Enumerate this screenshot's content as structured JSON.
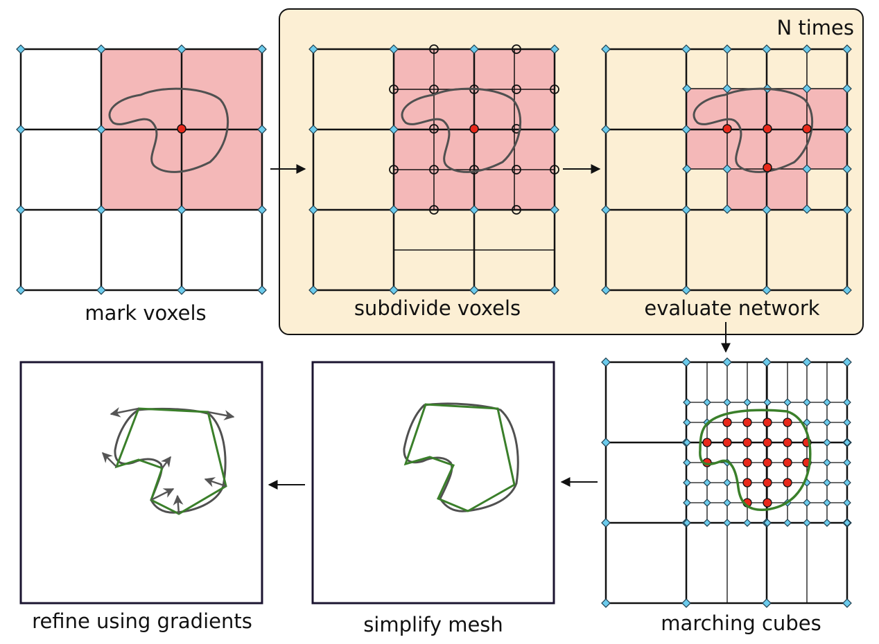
{
  "repeat_box": {
    "label": "N times"
  },
  "steps": [
    {
      "id": "mark-voxels",
      "caption": "mark voxels"
    },
    {
      "id": "subdivide-voxels",
      "caption": "subdivide voxels"
    },
    {
      "id": "evaluate-network",
      "caption": "evaluate network"
    },
    {
      "id": "marching-cubes",
      "caption": "marching cubes"
    },
    {
      "id": "simplify-mesh",
      "caption": "simplify mesh"
    },
    {
      "id": "refine-using-gradients",
      "caption": "refine using gradients"
    }
  ],
  "colors": {
    "marked_fill": "#f4b8b8",
    "repeat_box_fill": "#fcefd4",
    "grid_vertex": "#6ccbec",
    "inside_point": "#e8291b",
    "shape_outline": "#505050",
    "mesh": "#3a7f2a",
    "gradient_arrow": "#555555"
  }
}
